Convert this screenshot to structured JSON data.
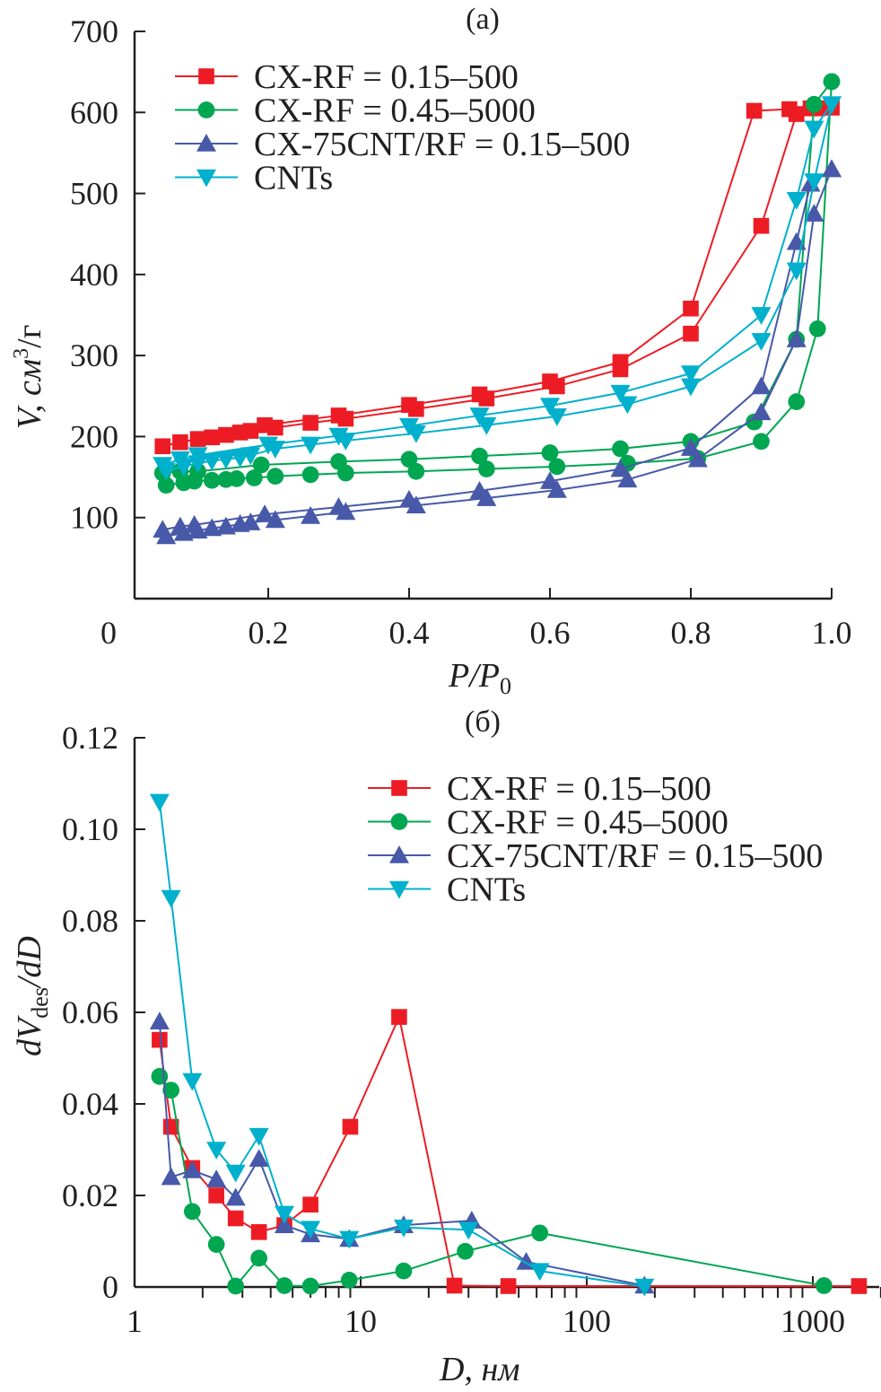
{
  "colors": {
    "red": "#ed1c24",
    "green": "#00a650",
    "blue": "#4759a8",
    "cyan": "#00b0cc",
    "axis": "#231f20"
  },
  "chart_data": [
    {
      "type": "line",
      "title": "(а)",
      "xlabel": "P/P",
      "xlabel_sub": "0",
      "ylabel": "V, см",
      "ylabel_sup": "3",
      "ylabel_tail": "/г",
      "xlim": [
        0,
        1.0
      ],
      "ylim": [
        0,
        700
      ],
      "xticks": [
        0,
        0.2,
        0.4,
        0.6,
        0.8,
        1.0
      ],
      "xtick_labels": [
        "0",
        "0.2",
        "0.4",
        "0.6",
        "0.8",
        "1.0"
      ],
      "yticks": [
        100,
        200,
        300,
        400,
        500,
        600,
        700
      ],
      "ytick_labels": [
        "100",
        "200",
        "300",
        "400",
        "500",
        "600",
        "700"
      ],
      "legend_placement": "top-left",
      "series": [
        {
          "name": "CX-RF = 0.15–500",
          "color": "red",
          "marker": "square",
          "adsorption": [
            [
              0.05,
              188
            ],
            [
              0.075,
              193
            ],
            [
              0.1,
              197
            ],
            [
              0.12,
              199
            ],
            [
              0.14,
              202
            ],
            [
              0.16,
              205
            ],
            [
              0.175,
              207
            ],
            [
              0.21,
              211
            ],
            [
              0.26,
              217
            ],
            [
              0.31,
              222
            ],
            [
              0.41,
              234
            ],
            [
              0.51,
              247
            ],
            [
              0.61,
              262
            ],
            [
              0.7,
              283
            ],
            [
              0.8,
              327
            ],
            [
              0.9,
              460
            ],
            [
              0.95,
              598
            ],
            [
              0.98,
              605
            ],
            [
              1.0,
              606
            ]
          ],
          "desorption": [
            [
              1.0,
              606
            ],
            [
              0.97,
              605
            ],
            [
              0.94,
              604
            ],
            [
              0.89,
              602
            ],
            [
              0.8,
              358
            ],
            [
              0.7,
              292
            ],
            [
              0.6,
              268
            ],
            [
              0.5,
              252
            ],
            [
              0.4,
              239
            ],
            [
              0.3,
              226
            ],
            [
              0.195,
              214
            ]
          ]
        },
        {
          "name": "CX-RF = 0.45–5000",
          "color": "green",
          "marker": "circle",
          "adsorption": [
            [
              0.055,
              140
            ],
            [
              0.08,
              143
            ],
            [
              0.095,
              145
            ],
            [
              0.12,
              146
            ],
            [
              0.14,
              147
            ],
            [
              0.155,
              148
            ],
            [
              0.18,
              149
            ],
            [
              0.21,
              151
            ],
            [
              0.26,
              153
            ],
            [
              0.31,
              155
            ],
            [
              0.41,
              157
            ],
            [
              0.51,
              160
            ],
            [
              0.61,
              163
            ],
            [
              0.71,
              167
            ],
            [
              0.81,
              173
            ],
            [
              0.9,
              194
            ],
            [
              0.95,
              243
            ],
            [
              0.98,
              333
            ],
            [
              1.0,
              638
            ]
          ],
          "desorption": [
            [
              1.0,
              638
            ],
            [
              0.975,
              610
            ],
            [
              0.95,
              320
            ],
            [
              0.89,
              218
            ],
            [
              0.8,
              194
            ],
            [
              0.7,
              185
            ],
            [
              0.6,
              180
            ],
            [
              0.5,
              176
            ],
            [
              0.4,
              172
            ],
            [
              0.3,
              169
            ],
            [
              0.19,
              165
            ],
            [
              0.1,
              157
            ],
            [
              0.075,
              157
            ],
            [
              0.05,
              155
            ]
          ]
        },
        {
          "name": "CX-75CNT/RF = 0.15–500",
          "color": "blue",
          "marker": "triangle-up",
          "adsorption": [
            [
              0.055,
              77
            ],
            [
              0.08,
              81
            ],
            [
              0.1,
              84
            ],
            [
              0.12,
              87
            ],
            [
              0.14,
              89
            ],
            [
              0.16,
              92
            ],
            [
              0.175,
              94
            ],
            [
              0.21,
              97
            ],
            [
              0.26,
              102
            ],
            [
              0.31,
              107
            ],
            [
              0.41,
              115
            ],
            [
              0.51,
              124
            ],
            [
              0.61,
              134
            ],
            [
              0.71,
              147
            ],
            [
              0.81,
              172
            ],
            [
              0.9,
              230
            ],
            [
              0.95,
              320
            ],
            [
              0.975,
              475
            ],
            [
              1.0,
              530
            ]
          ],
          "desorption": [
            [
              1.0,
              530
            ],
            [
              0.97,
              512
            ],
            [
              0.95,
              440
            ],
            [
              0.9,
              262
            ],
            [
              0.8,
              186
            ],
            [
              0.7,
              160
            ],
            [
              0.6,
              145
            ],
            [
              0.5,
              133
            ],
            [
              0.4,
              122
            ],
            [
              0.3,
              113
            ],
            [
              0.195,
              104
            ],
            [
              0.095,
              91
            ],
            [
              0.075,
              89
            ],
            [
              0.05,
              85
            ]
          ]
        },
        {
          "name": "CNTs",
          "color": "cyan",
          "marker": "triangle-down",
          "adsorption": [
            [
              0.055,
              158
            ],
            [
              0.08,
              163
            ],
            [
              0.1,
              167
            ],
            [
              0.12,
              170
            ],
            [
              0.14,
              172
            ],
            [
              0.16,
              174
            ],
            [
              0.175,
              177
            ],
            [
              0.21,
              185
            ],
            [
              0.26,
              190
            ],
            [
              0.31,
              195
            ],
            [
              0.41,
              204
            ],
            [
              0.51,
              214
            ],
            [
              0.61,
              225
            ],
            [
              0.71,
              240
            ],
            [
              0.8,
              262
            ],
            [
              0.9,
              318
            ],
            [
              0.95,
              405
            ],
            [
              0.975,
              515
            ],
            [
              1.0,
              610
            ]
          ],
          "desorption": [
            [
              1.0,
              610
            ],
            [
              0.975,
              580
            ],
            [
              0.95,
              492
            ],
            [
              0.9,
              350
            ],
            [
              0.8,
              278
            ],
            [
              0.7,
              254
            ],
            [
              0.6,
              238
            ],
            [
              0.5,
              226
            ],
            [
              0.4,
              213
            ],
            [
              0.3,
              201
            ],
            [
              0.2,
              190
            ],
            [
              0.1,
              177
            ],
            [
              0.075,
              172
            ],
            [
              0.05,
              165
            ]
          ]
        }
      ]
    },
    {
      "type": "line",
      "title": "(б)",
      "xlabel": "D, нм",
      "ylabel": "dV",
      "ylabel_sub": "des",
      "ylabel_tail": "/dD",
      "xscale": "log",
      "xlim": [
        1,
        2000
      ],
      "ylim": [
        0,
        0.12
      ],
      "xticks": [
        1,
        10,
        100,
        1000
      ],
      "xtick_labels": [
        "1",
        "10",
        "100",
        "1000"
      ],
      "yticks": [
        0,
        0.02,
        0.04,
        0.06,
        0.08,
        0.1,
        0.12
      ],
      "ytick_labels": [
        "0",
        "0.02",
        "0.04",
        "0.06",
        "0.08",
        "0.10",
        "0.12"
      ],
      "legend_placement": "top-right",
      "series": [
        {
          "name": "CX-RF = 0.15–500",
          "color": "red",
          "marker": "square",
          "points": [
            [
              1.29,
              0.054
            ],
            [
              1.45,
              0.035
            ],
            [
              1.8,
              0.026
            ],
            [
              2.3,
              0.02
            ],
            [
              2.8,
              0.015
            ],
            [
              3.55,
              0.012
            ],
            [
              4.6,
              0.0135
            ],
            [
              6.0,
              0.018
            ],
            [
              9.0,
              0.035
            ],
            [
              14.8,
              0.059
            ],
            [
              26,
              0.0003
            ],
            [
              45,
              0.0002
            ],
            [
              1600,
              0.0002
            ]
          ]
        },
        {
          "name": "CX-RF = 0.45–5000",
          "color": "green",
          "marker": "circle",
          "points": [
            [
              1.29,
              0.046
            ],
            [
              1.45,
              0.043
            ],
            [
              1.8,
              0.0165
            ],
            [
              2.3,
              0.0093
            ],
            [
              2.8,
              0.0002
            ],
            [
              3.55,
              0.0063
            ],
            [
              4.6,
              0.0003
            ],
            [
              6,
              0.0002
            ],
            [
              8.9,
              0.0015
            ],
            [
              15.5,
              0.0035
            ],
            [
              29,
              0.0078
            ],
            [
              62,
              0.0118
            ],
            [
              1120,
              0.0003
            ]
          ]
        },
        {
          "name": "CX-75CNT/RF = 0.15–500",
          "color": "blue",
          "marker": "triangle-up",
          "points": [
            [
              1.29,
              0.058
            ],
            [
              1.45,
              0.024
            ],
            [
              1.8,
              0.0255
            ],
            [
              2.3,
              0.0235
            ],
            [
              2.8,
              0.0195
            ],
            [
              3.55,
              0.028
            ],
            [
              4.6,
              0.0135
            ],
            [
              6,
              0.0115
            ],
            [
              8.9,
              0.0105
            ],
            [
              15.5,
              0.0135
            ],
            [
              31,
              0.0145
            ],
            [
              54,
              0.0055
            ],
            [
              180,
              0.0003
            ]
          ]
        },
        {
          "name": "CNTs",
          "color": "cyan",
          "marker": "triangle-down",
          "points": [
            [
              1.29,
              0.106
            ],
            [
              1.45,
              0.085
            ],
            [
              1.8,
              0.045
            ],
            [
              2.3,
              0.03
            ],
            [
              2.8,
              0.025
            ],
            [
              3.55,
              0.033
            ],
            [
              4.6,
              0.016
            ],
            [
              6,
              0.0127
            ],
            [
              8.9,
              0.0105
            ],
            [
              15.5,
              0.013
            ],
            [
              30,
              0.0125
            ],
            [
              62,
              0.0035
            ],
            [
              180,
              0.0001
            ]
          ]
        }
      ]
    }
  ]
}
